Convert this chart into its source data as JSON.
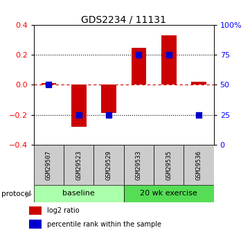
{
  "title": "GDS2234 / 11131",
  "samples": [
    "GSM29507",
    "GSM29523",
    "GSM29529",
    "GSM29533",
    "GSM29535",
    "GSM29536"
  ],
  "log2_ratio": [
    0.01,
    -0.28,
    -0.19,
    0.25,
    0.33,
    0.02
  ],
  "percentile_rank": [
    50,
    25,
    25,
    75,
    75,
    25
  ],
  "bar_color": "#cc0000",
  "dot_color": "#0000cc",
  "ylim_left": [
    -0.4,
    0.4
  ],
  "ylim_right": [
    0,
    100
  ],
  "yticks_left": [
    -0.4,
    -0.2,
    0.0,
    0.2,
    0.4
  ],
  "yticks_right": [
    0,
    25,
    50,
    75,
    100
  ],
  "ytick_labels_right": [
    "0",
    "25",
    "50",
    "75",
    "100%"
  ],
  "hlines_dotted": [
    -0.2,
    0.2
  ],
  "hline_dashed": 0.0,
  "groups": [
    {
      "label": "baseline",
      "start": 0,
      "end": 3,
      "color": "#aaffaa"
    },
    {
      "label": "20 wk exercise",
      "start": 3,
      "end": 6,
      "color": "#55dd55"
    }
  ],
  "protocol_label": "protocol",
  "legend_items": [
    {
      "label": "log2 ratio",
      "color": "#cc0000"
    },
    {
      "label": "percentile rank within the sample",
      "color": "#0000cc"
    }
  ],
  "bar_width": 0.5,
  "dot_size": 40,
  "sample_box_color": "#cccccc",
  "background_color": "#ffffff"
}
